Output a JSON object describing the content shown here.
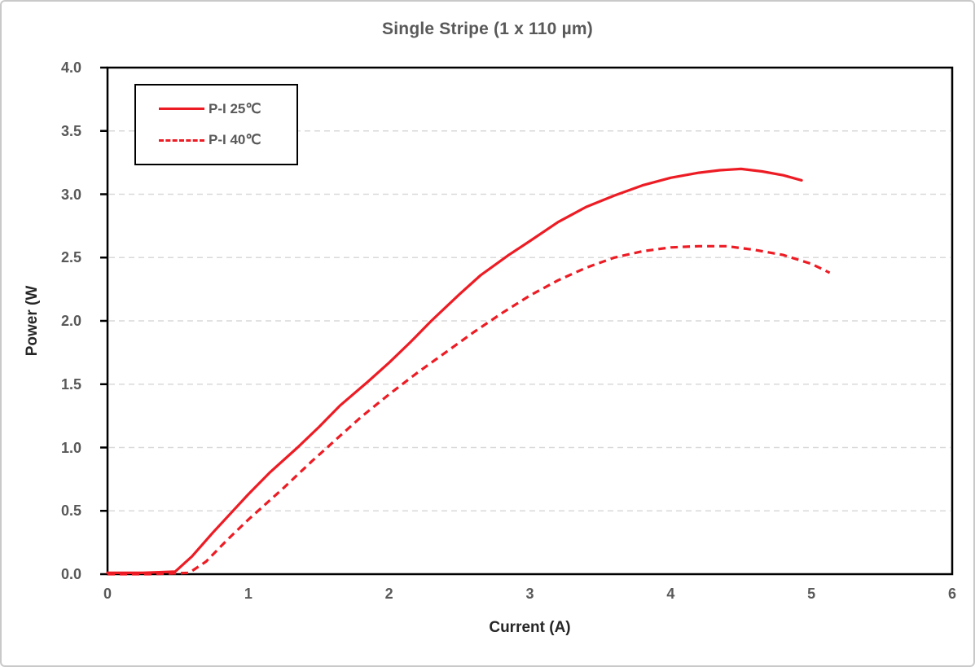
{
  "title": "Single Stripe (1 x 110 µm)",
  "legend": {
    "items": [
      {
        "label": "P-I 25℃",
        "style": "solid"
      },
      {
        "label": "P-I 40℃",
        "style": "dashed"
      }
    ]
  },
  "colors": {
    "series_red": "#ED1C24",
    "grid": "#D9D9D9",
    "axis": "#000000",
    "tick_text": "#595959",
    "title_text": "#595959",
    "axis_title_text": "#262626"
  },
  "chart_data": {
    "type": "line",
    "title": "Single Stripe (1 x 110 µm)",
    "xlabel": "Current (A)",
    "ylabel": "Power (W",
    "xlim": [
      0,
      6
    ],
    "ylim": [
      0,
      4
    ],
    "xticks": [
      0,
      1,
      2,
      3,
      4,
      5,
      6
    ],
    "yticks": [
      0,
      0.5,
      1,
      1.5,
      2,
      2.5,
      3,
      3.5,
      4
    ],
    "grid": "horizontal dashed gridlines every 0.5 W",
    "legend_position": "top-left inside plot",
    "series": [
      {
        "name": "P-I 25℃",
        "line_style": "solid",
        "color": "#ED1C24",
        "points": [
          [
            0,
            0.01
          ],
          [
            0.25,
            0.01
          ],
          [
            0.48,
            0.02
          ],
          [
            0.6,
            0.14
          ],
          [
            0.75,
            0.33
          ],
          [
            0.9,
            0.51
          ],
          [
            1.0,
            0.63
          ],
          [
            1.15,
            0.8
          ],
          [
            1.35,
            1.0
          ],
          [
            1.5,
            1.16
          ],
          [
            1.65,
            1.33
          ],
          [
            1.85,
            1.52
          ],
          [
            2.0,
            1.67
          ],
          [
            2.15,
            1.83
          ],
          [
            2.3,
            2.0
          ],
          [
            2.5,
            2.21
          ],
          [
            2.65,
            2.36
          ],
          [
            2.85,
            2.52
          ],
          [
            3.0,
            2.63
          ],
          [
            3.2,
            2.78
          ],
          [
            3.4,
            2.9
          ],
          [
            3.6,
            2.99
          ],
          [
            3.8,
            3.07
          ],
          [
            4.0,
            3.13
          ],
          [
            4.2,
            3.17
          ],
          [
            4.35,
            3.19
          ],
          [
            4.5,
            3.2
          ],
          [
            4.65,
            3.18
          ],
          [
            4.8,
            3.15
          ],
          [
            4.93,
            3.11
          ]
        ]
      },
      {
        "name": "P-I 40℃",
        "line_style": "dashed",
        "color": "#ED1C24",
        "points": [
          [
            0,
            0.0
          ],
          [
            0.3,
            0.0
          ],
          [
            0.58,
            0.01
          ],
          [
            0.7,
            0.1
          ],
          [
            0.85,
            0.27
          ],
          [
            1.0,
            0.43
          ],
          [
            1.1,
            0.53
          ],
          [
            1.25,
            0.68
          ],
          [
            1.45,
            0.89
          ],
          [
            1.6,
            1.04
          ],
          [
            1.8,
            1.24
          ],
          [
            2.0,
            1.42
          ],
          [
            2.2,
            1.59
          ],
          [
            2.4,
            1.75
          ],
          [
            2.6,
            1.91
          ],
          [
            2.8,
            2.06
          ],
          [
            3.0,
            2.2
          ],
          [
            3.2,
            2.32
          ],
          [
            3.4,
            2.42
          ],
          [
            3.6,
            2.5
          ],
          [
            3.8,
            2.55
          ],
          [
            4.0,
            2.58
          ],
          [
            4.2,
            2.59
          ],
          [
            4.4,
            2.59
          ],
          [
            4.6,
            2.56
          ],
          [
            4.8,
            2.52
          ],
          [
            5.0,
            2.45
          ],
          [
            5.13,
            2.38
          ]
        ]
      }
    ]
  }
}
